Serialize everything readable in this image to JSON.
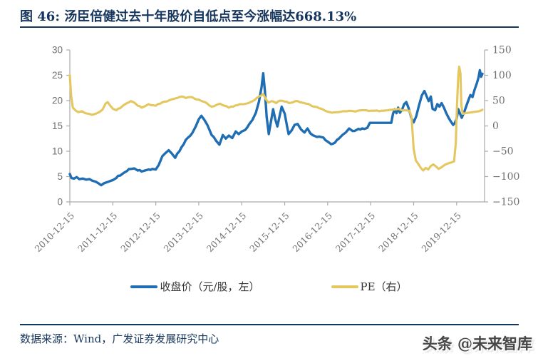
{
  "header": {
    "title": "图 46: 汤臣倍健过去十年股价自低点至今涨幅达668.13%"
  },
  "footer": {
    "source": "数据来源：Wind，广发证券发展研究中心",
    "watermark": "头条 @未来智库"
  },
  "colors": {
    "navy": "#17365D",
    "close_line": "#1F6DB2",
    "pe_line": "#E4C75E",
    "axis_line": "#ABABAB",
    "axis_text": "#707070"
  },
  "chart_data": {
    "type": "line",
    "title": "汤臣倍健过去十年股价自低点至今涨幅达668.13%",
    "grid": false,
    "legend_position": "bottom",
    "x": {
      "unit": "years since 2010-12-15",
      "tick_years": [
        0,
        1,
        2,
        3,
        4,
        5,
        6,
        7,
        8,
        9
      ],
      "tick_labels": [
        "2010-12-15",
        "2011-12-15",
        "2012-12-15",
        "2013-12-15",
        "2014-12-15",
        "2015-12-15",
        "2016-12-15",
        "2017-12-15",
        "2018-12-15",
        "2019-12-15"
      ],
      "range_years": [
        0,
        9.65
      ]
    },
    "y_left": {
      "label": "收盘价（元/股）",
      "range": [
        0,
        30
      ],
      "ticks": [
        0,
        5,
        10,
        15,
        20,
        25,
        30
      ]
    },
    "y_right": {
      "label": "PE",
      "range": [
        -150,
        150
      ],
      "ticks": [
        -150,
        -100,
        -50,
        0,
        50,
        100,
        150
      ]
    },
    "series": [
      {
        "name": "收盘价（元/股，左）",
        "axis": "left",
        "color": "#1F6DB2",
        "noise": 0.22,
        "points": [
          [
            0,
            5.5
          ],
          [
            0.04,
            4.7
          ],
          [
            0.1,
            4.6
          ],
          [
            0.16,
            4.9
          ],
          [
            0.22,
            4.5
          ],
          [
            0.3,
            4.6
          ],
          [
            0.38,
            4.4
          ],
          [
            0.46,
            4.5
          ],
          [
            0.52,
            4.2
          ],
          [
            0.6,
            4.0
          ],
          [
            0.66,
            3.7
          ],
          [
            0.73,
            3.3
          ],
          [
            0.8,
            3.7
          ],
          [
            0.87,
            3.9
          ],
          [
            0.93,
            4.1
          ],
          [
            1.0,
            4.3
          ],
          [
            1.08,
            4.7
          ],
          [
            1.17,
            5.2
          ],
          [
            1.25,
            5.7
          ],
          [
            1.33,
            6.1
          ],
          [
            1.42,
            6.5
          ],
          [
            1.5,
            6.6
          ],
          [
            1.58,
            6.2
          ],
          [
            1.67,
            6.0
          ],
          [
            1.75,
            6.2
          ],
          [
            1.83,
            6.4
          ],
          [
            1.92,
            6.5
          ],
          [
            2.0,
            6.4
          ],
          [
            2.07,
            7.3
          ],
          [
            2.15,
            9.0
          ],
          [
            2.22,
            9.6
          ],
          [
            2.3,
            10.2
          ],
          [
            2.38,
            9.5
          ],
          [
            2.45,
            8.7
          ],
          [
            2.55,
            10.0
          ],
          [
            2.65,
            11.4
          ],
          [
            2.75,
            12.7
          ],
          [
            2.85,
            13.6
          ],
          [
            2.93,
            14.9
          ],
          [
            3.0,
            16.3
          ],
          [
            3.06,
            17.0
          ],
          [
            3.13,
            16.2
          ],
          [
            3.2,
            15.2
          ],
          [
            3.3,
            13.2
          ],
          [
            3.4,
            12.1
          ],
          [
            3.48,
            11.3
          ],
          [
            3.56,
            13.2
          ],
          [
            3.63,
            12.5
          ],
          [
            3.7,
            13.1
          ],
          [
            3.78,
            12.6
          ],
          [
            3.86,
            13.9
          ],
          [
            3.93,
            13.4
          ],
          [
            4.0,
            13.9
          ],
          [
            4.08,
            14.2
          ],
          [
            4.17,
            15.3
          ],
          [
            4.25,
            16.2
          ],
          [
            4.33,
            17.6
          ],
          [
            4.4,
            19.8
          ],
          [
            4.46,
            22.6
          ],
          [
            4.5,
            25.4
          ],
          [
            4.54,
            21.8
          ],
          [
            4.58,
            16.8
          ],
          [
            4.63,
            13.4
          ],
          [
            4.68,
            15.9
          ],
          [
            4.73,
            18.3
          ],
          [
            4.78,
            16.3
          ],
          [
            4.83,
            14.9
          ],
          [
            4.88,
            16.9
          ],
          [
            4.93,
            18.8
          ],
          [
            5.0,
            17.4
          ],
          [
            5.05,
            15.1
          ],
          [
            5.09,
            13.4
          ],
          [
            5.16,
            14.1
          ],
          [
            5.23,
            15.2
          ],
          [
            5.3,
            15.4
          ],
          [
            5.38,
            14.3
          ],
          [
            5.46,
            13.7
          ],
          [
            5.53,
            14.5
          ],
          [
            5.6,
            13.5
          ],
          [
            5.7,
            13.0
          ],
          [
            5.8,
            12.9
          ],
          [
            5.9,
            12.7
          ],
          [
            6.0,
            11.9
          ],
          [
            6.08,
            11.4
          ],
          [
            6.17,
            11.7
          ],
          [
            6.26,
            12.5
          ],
          [
            6.34,
            13.2
          ],
          [
            6.42,
            13.7
          ],
          [
            6.5,
            14.5
          ],
          [
            6.58,
            14.0
          ],
          [
            6.67,
            14.2
          ],
          [
            6.76,
            14.3
          ],
          [
            6.85,
            14.4
          ],
          [
            6.92,
            14.6
          ],
          [
            6.98,
            15.6
          ],
          [
            7.48,
            15.6
          ],
          [
            7.52,
            17.4
          ],
          [
            7.56,
            18.3
          ],
          [
            7.6,
            17.5
          ],
          [
            7.64,
            18.6
          ],
          [
            7.68,
            17.6
          ],
          [
            7.73,
            18.2
          ],
          [
            7.78,
            19.3
          ],
          [
            7.83,
            19.7
          ],
          [
            7.88,
            18.6
          ],
          [
            7.95,
            16.5
          ],
          [
            8.0,
            15.7
          ],
          [
            8.06,
            16.9
          ],
          [
            8.12,
            18.9
          ],
          [
            8.19,
            21.0
          ],
          [
            8.25,
            21.9
          ],
          [
            8.3,
            20.9
          ],
          [
            8.35,
            19.9
          ],
          [
            8.4,
            20.8
          ],
          [
            8.44,
            18.4
          ],
          [
            8.5,
            18.1
          ],
          [
            8.55,
            19.3
          ],
          [
            8.6,
            18.8
          ],
          [
            8.65,
            19.5
          ],
          [
            8.7,
            18.7
          ],
          [
            8.76,
            17.5
          ],
          [
            8.82,
            16.5
          ],
          [
            8.87,
            15.8
          ],
          [
            8.92,
            15.2
          ],
          [
            8.96,
            15.6
          ],
          [
            9.0,
            16.4
          ],
          [
            9.04,
            18.3
          ],
          [
            9.08,
            17.4
          ],
          [
            9.12,
            16.6
          ],
          [
            9.17,
            17.6
          ],
          [
            9.22,
            18.8
          ],
          [
            9.27,
            20.0
          ],
          [
            9.32,
            21.1
          ],
          [
            9.37,
            20.7
          ],
          [
            9.42,
            22.2
          ],
          [
            9.47,
            23.4
          ],
          [
            9.51,
            24.6
          ],
          [
            9.54,
            26.0
          ],
          [
            9.57,
            24.7
          ],
          [
            9.6,
            25.3
          ]
        ]
      },
      {
        "name": "PE（右）",
        "axis": "right",
        "color": "#E4C75E",
        "noise": 1.2,
        "points": [
          [
            0,
            100
          ],
          [
            0.03,
            60
          ],
          [
            0.07,
            36
          ],
          [
            0.14,
            30
          ],
          [
            0.2,
            27
          ],
          [
            0.28,
            29
          ],
          [
            0.36,
            25
          ],
          [
            0.44,
            24
          ],
          [
            0.52,
            22
          ],
          [
            0.6,
            24
          ],
          [
            0.68,
            27
          ],
          [
            0.76,
            32
          ],
          [
            0.83,
            44
          ],
          [
            0.88,
            47
          ],
          [
            0.94,
            40
          ],
          [
            1.0,
            34
          ],
          [
            1.08,
            31
          ],
          [
            1.17,
            35
          ],
          [
            1.25,
            41
          ],
          [
            1.33,
            45
          ],
          [
            1.42,
            49
          ],
          [
            1.5,
            46
          ],
          [
            1.58,
            40
          ],
          [
            1.67,
            36
          ],
          [
            1.75,
            39
          ],
          [
            1.83,
            43
          ],
          [
            1.92,
            41
          ],
          [
            2.0,
            40
          ],
          [
            2.1,
            44
          ],
          [
            2.2,
            48
          ],
          [
            2.3,
            50
          ],
          [
            2.4,
            53
          ],
          [
            2.5,
            55
          ],
          [
            2.6,
            58
          ],
          [
            2.7,
            55
          ],
          [
            2.8,
            57
          ],
          [
            2.9,
            54
          ],
          [
            3.0,
            52
          ],
          [
            3.1,
            48
          ],
          [
            3.2,
            44
          ],
          [
            3.3,
            38
          ],
          [
            3.4,
            41
          ],
          [
            3.5,
            44
          ],
          [
            3.6,
            40
          ],
          [
            3.7,
            36
          ],
          [
            3.8,
            38
          ],
          [
            3.9,
            41
          ],
          [
            4.0,
            43
          ],
          [
            4.1,
            44
          ],
          [
            4.2,
            47
          ],
          [
            4.3,
            51
          ],
          [
            4.4,
            58
          ],
          [
            4.5,
            63
          ],
          [
            4.56,
            53
          ],
          [
            4.62,
            46
          ],
          [
            4.7,
            49
          ],
          [
            4.8,
            45
          ],
          [
            4.9,
            50
          ],
          [
            5.0,
            48
          ],
          [
            5.1,
            45
          ],
          [
            5.2,
            47
          ],
          [
            5.3,
            49
          ],
          [
            5.4,
            46
          ],
          [
            5.5,
            44
          ],
          [
            5.6,
            41
          ],
          [
            5.7,
            38
          ],
          [
            5.8,
            35
          ],
          [
            5.9,
            32
          ],
          [
            6.0,
            28
          ],
          [
            6.1,
            26
          ],
          [
            6.2,
            27
          ],
          [
            6.3,
            28
          ],
          [
            6.4,
            29
          ],
          [
            6.5,
            30
          ],
          [
            6.6,
            29
          ],
          [
            6.7,
            30
          ],
          [
            6.8,
            31
          ],
          [
            6.9,
            31
          ],
          [
            7.0,
            30
          ],
          [
            7.1,
            30
          ],
          [
            7.2,
            29
          ],
          [
            7.3,
            30
          ],
          [
            7.4,
            31
          ],
          [
            7.5,
            32
          ],
          [
            7.6,
            33
          ],
          [
            7.7,
            32
          ],
          [
            7.8,
            31
          ],
          [
            7.9,
            30
          ],
          [
            7.95,
            18
          ],
          [
            8.0,
            -45
          ],
          [
            8.05,
            -68
          ],
          [
            8.1,
            -74
          ],
          [
            8.16,
            -82
          ],
          [
            8.22,
            -88
          ],
          [
            8.28,
            -83
          ],
          [
            8.34,
            -86
          ],
          [
            8.4,
            -79
          ],
          [
            8.46,
            -76
          ],
          [
            8.52,
            -80
          ],
          [
            8.58,
            -85
          ],
          [
            8.64,
            -82
          ],
          [
            8.72,
            -77
          ],
          [
            8.8,
            -74
          ],
          [
            8.88,
            -72
          ],
          [
            8.94,
            -70
          ],
          [
            8.98,
            -35
          ],
          [
            9.01,
            45
          ],
          [
            9.04,
            100
          ],
          [
            9.06,
            117
          ],
          [
            9.09,
            104
          ],
          [
            9.11,
            42
          ],
          [
            9.14,
            24
          ],
          [
            9.2,
            25
          ],
          [
            9.28,
            26
          ],
          [
            9.36,
            27
          ],
          [
            9.44,
            28
          ],
          [
            9.52,
            29
          ],
          [
            9.58,
            31
          ],
          [
            9.6,
            32
          ]
        ]
      }
    ]
  }
}
